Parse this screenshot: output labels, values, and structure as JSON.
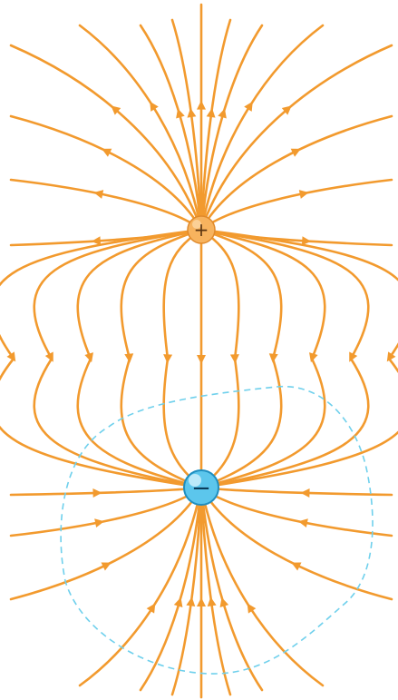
{
  "figure": {
    "positive_charge": {
      "symbol": "+",
      "fill": "#f7b35e",
      "rim": "#e08a2c",
      "highlight": "#fde3bd"
    },
    "negative_charge": {
      "symbol": "−",
      "fill": "#5cc6ec",
      "rim": "#1f8ec0",
      "highlight": "#e6f8ff"
    },
    "field_line_color": "#f29a2e",
    "gaussian_surface_color": "#6fd0ec",
    "icons": [
      "positive-charge-icon",
      "negative-charge-icon"
    ]
  }
}
